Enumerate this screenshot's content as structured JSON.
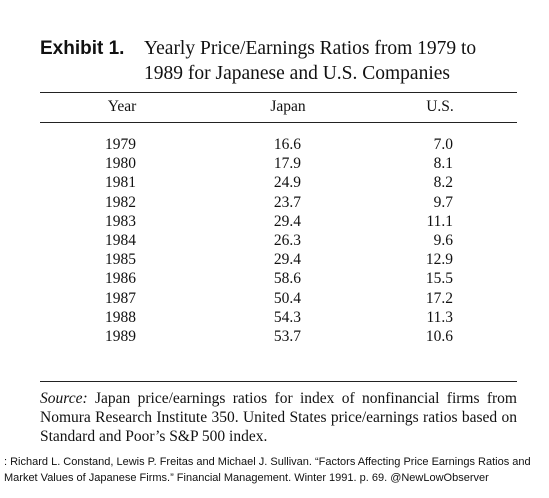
{
  "exhibit": {
    "label": "Exhibit 1.",
    "title_lines": [
      "Yearly Price/Earnings Ratios from 1979 to",
      "1989 for Japanese and U.S. Companies"
    ]
  },
  "table": {
    "header": [
      "Year",
      "Japan",
      "U.S."
    ],
    "rows": [
      [
        "1979",
        "16.6",
        "7.0"
      ],
      [
        "1980",
        "17.9",
        "8.1"
      ],
      [
        "1981",
        "24.9",
        "8.2"
      ],
      [
        "1982",
        "23.7",
        "9.7"
      ],
      [
        "1983",
        "29.4",
        "11.1"
      ],
      [
        "1984",
        "26.3",
        "9.6"
      ],
      [
        "1985",
        "29.4",
        "12.9"
      ],
      [
        "1986",
        "58.6",
        "15.5"
      ],
      [
        "1987",
        "50.4",
        "17.2"
      ],
      [
        "1988",
        "54.3",
        "11.3"
      ],
      [
        "1989",
        "53.7",
        "10.6"
      ]
    ]
  },
  "source": {
    "label": "Source:",
    "text": "Japan price/earnings ratios for index of nonfinancial firms from Nomura Research Institute 350. United States price/earnings ratios based on Standard and Poor’s S&P 500 index."
  },
  "credit": ": Richard L. Constand, Lewis P. Freitas and Michael J. Sullivan. “Factors Affecting Price Earnings Ratios and Market Values of Japanese Firms.” Financial Management. Winter 1991. p. 69. @NewLowObserver"
}
